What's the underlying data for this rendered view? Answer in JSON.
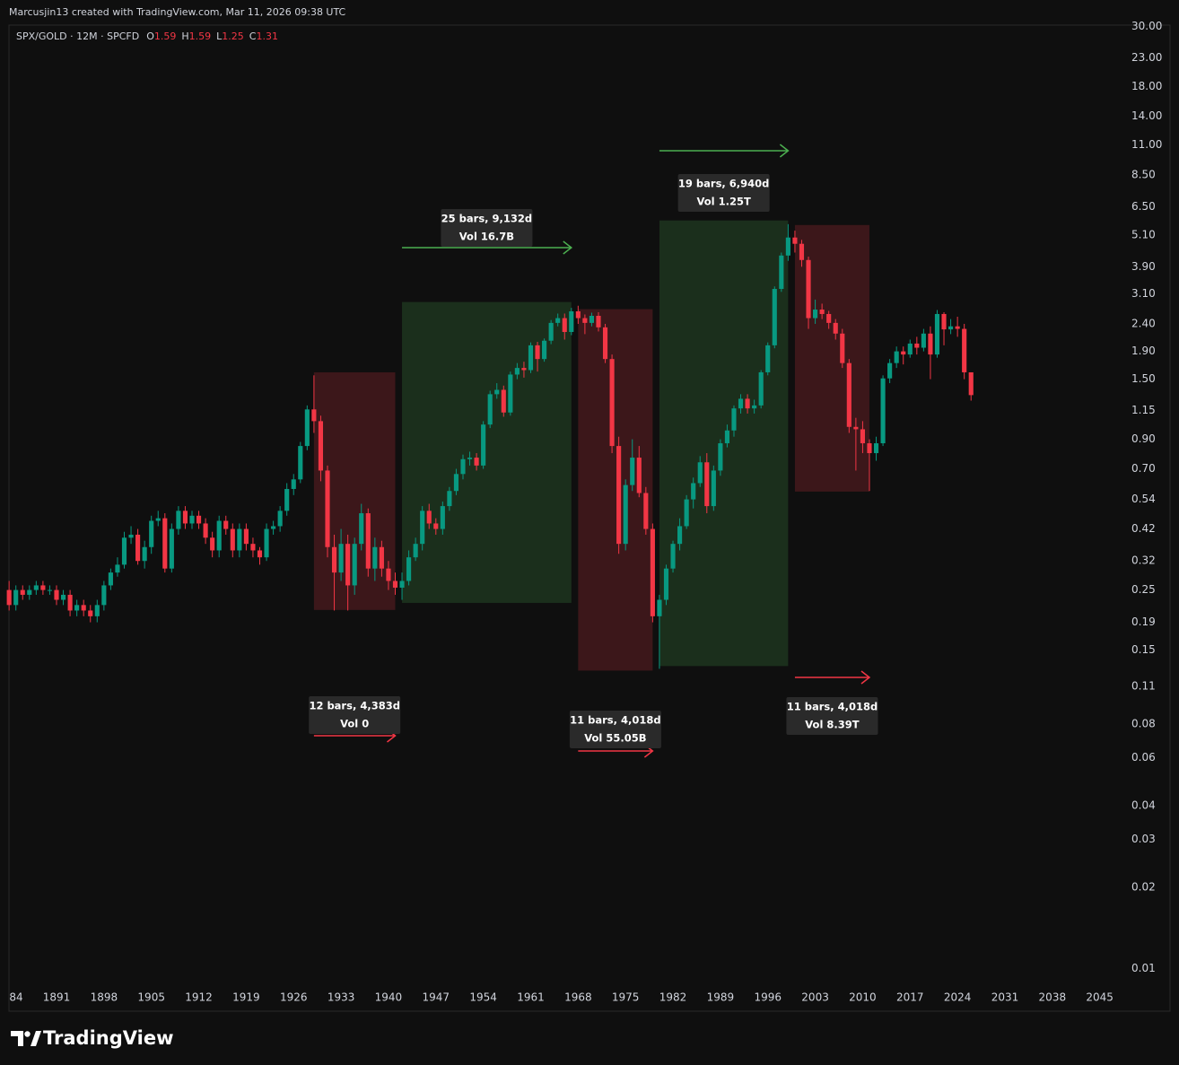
{
  "header": {
    "credit": "Marcusjin13 created with TradingView.com, Mar 11, 2026 09:38 UTC"
  },
  "footer": {
    "brand": "TradingView"
  },
  "chart_data": {
    "type": "candlestick",
    "legend": {
      "symbol": "SPX/GOLD · 12M · SPCFD",
      "ohlc": [
        [
          "O",
          "1.59"
        ],
        [
          "H",
          "1.59"
        ],
        [
          "L",
          "1.25"
        ],
        [
          "C",
          "1.31"
        ]
      ]
    },
    "log_scale": true,
    "grid": false,
    "up_color": "#089981",
    "down_color": "#f23645",
    "xlim": [
      1883.98,
      2047.56
    ],
    "xticks": [
      {
        "value": 1884,
        "label": "84"
      },
      1891,
      1898,
      1905,
      1912,
      1919,
      1926,
      1933,
      1940,
      1947,
      1954,
      1961,
      1968,
      1975,
      1982,
      1989,
      1996,
      2003,
      2010,
      2017,
      2024,
      2031,
      2038,
      2045
    ],
    "ylim": [
      0.0089,
      30.4
    ],
    "yticks": [
      {
        "value": 30,
        "label": "30.00"
      },
      {
        "value": 23,
        "label": "23.00"
      },
      {
        "value": 18,
        "label": "18.00"
      },
      {
        "value": 14,
        "label": "14.00"
      },
      {
        "value": 11,
        "label": "11.00"
      },
      {
        "value": 8.5,
        "label": "8.50"
      },
      {
        "value": 6.5,
        "label": "6.50"
      },
      {
        "value": 5.1,
        "label": "5.10"
      },
      {
        "value": 3.9,
        "label": "3.90"
      },
      {
        "value": 3.1,
        "label": "3.10"
      },
      {
        "value": 2.4,
        "label": "2.40"
      },
      {
        "value": 1.9,
        "label": "1.90"
      },
      {
        "value": 1.5,
        "label": "1.50"
      },
      1.15,
      {
        "value": 0.9,
        "label": "0.90"
      },
      {
        "value": 0.7,
        "label": "0.70"
      },
      0.54,
      0.42,
      0.32,
      0.25,
      0.19,
      0.15,
      0.11,
      0.08,
      0.06,
      0.04,
      0.03,
      0.02,
      0.01
    ],
    "x": [
      1884,
      1885,
      1886,
      1887,
      1888,
      1889,
      1890,
      1891,
      1892,
      1893,
      1894,
      1895,
      1896,
      1897,
      1898,
      1899,
      1900,
      1901,
      1902,
      1903,
      1904,
      1905,
      1906,
      1907,
      1908,
      1909,
      1910,
      1911,
      1912,
      1913,
      1914,
      1915,
      1916,
      1917,
      1918,
      1919,
      1920,
      1921,
      1922,
      1923,
      1924,
      1925,
      1926,
      1927,
      1928,
      1929,
      1930,
      1931,
      1932,
      1933,
      1934,
      1935,
      1936,
      1937,
      1938,
      1939,
      1940,
      1941,
      1942,
      1943,
      1944,
      1945,
      1946,
      1947,
      1948,
      1949,
      1950,
      1951,
      1952,
      1953,
      1954,
      1955,
      1956,
      1957,
      1958,
      1959,
      1960,
      1961,
      1962,
      1963,
      1964,
      1965,
      1966,
      1967,
      1968,
      1969,
      1970,
      1971,
      1972,
      1973,
      1974,
      1975,
      1976,
      1977,
      1978,
      1979,
      1980,
      1981,
      1982,
      1983,
      1984,
      1985,
      1986,
      1987,
      1988,
      1989,
      1990,
      1991,
      1992,
      1993,
      1994,
      1995,
      1996,
      1997,
      1998,
      1999,
      2000,
      2001,
      2002,
      2003,
      2004,
      2005,
      2006,
      2007,
      2008,
      2009,
      2010,
      2011,
      2012,
      2013,
      2014,
      2015,
      2016,
      2017,
      2018,
      2019,
      2020,
      2021,
      2022,
      2023,
      2024,
      2025,
      2026
    ],
    "open": [
      0.25,
      0.22,
      0.25,
      0.24,
      0.25,
      0.26,
      0.25,
      0.25,
      0.23,
      0.24,
      0.21,
      0.22,
      0.21,
      0.2,
      0.22,
      0.26,
      0.29,
      0.31,
      0.39,
      0.4,
      0.32,
      0.36,
      0.45,
      0.46,
      0.3,
      0.42,
      0.49,
      0.44,
      0.47,
      0.44,
      0.39,
      0.35,
      0.45,
      0.42,
      0.35,
      0.42,
      0.37,
      0.35,
      0.33,
      0.42,
      0.43,
      0.49,
      0.59,
      0.64,
      0.85,
      1.16,
      1.05,
      0.69,
      0.36,
      0.29,
      0.37,
      0.26,
      0.37,
      0.48,
      0.3,
      0.36,
      0.3,
      0.27,
      0.255,
      0.27,
      0.33,
      0.37,
      0.49,
      0.44,
      0.42,
      0.51,
      0.58,
      0.67,
      0.76,
      0.77,
      0.72,
      1.02,
      1.32,
      1.37,
      1.13,
      1.56,
      1.65,
      1.62,
      2.0,
      1.78,
      2.08,
      2.42,
      2.52,
      2.24,
      2.67,
      2.52,
      2.42,
      2.57,
      2.33,
      1.78,
      0.85,
      0.37,
      0.61,
      0.77,
      0.57,
      0.42,
      0.2,
      0.23,
      0.3,
      0.37,
      0.43,
      0.54,
      0.62,
      0.74,
      0.51,
      0.69,
      0.87,
      0.97,
      1.17,
      1.27,
      1.17,
      1.2,
      1.59,
      2.0,
      3.23,
      4.29,
      5.0,
      4.74,
      4.13,
      2.52,
      2.71,
      2.61,
      2.42,
      2.21,
      1.72,
      1.0,
      0.98,
      0.87,
      0.8,
      0.87,
      1.51,
      1.72,
      1.9,
      1.85,
      2.03,
      1.96,
      2.21,
      1.85,
      2.61,
      2.29,
      2.35,
      2.3,
      1.59
    ],
    "high": [
      0.27,
      0.26,
      0.26,
      0.26,
      0.27,
      0.27,
      0.26,
      0.26,
      0.25,
      0.25,
      0.23,
      0.23,
      0.22,
      0.23,
      0.27,
      0.3,
      0.33,
      0.41,
      0.43,
      0.42,
      0.38,
      0.47,
      0.49,
      0.48,
      0.44,
      0.51,
      0.51,
      0.49,
      0.49,
      0.46,
      0.41,
      0.47,
      0.47,
      0.44,
      0.44,
      0.44,
      0.39,
      0.36,
      0.44,
      0.45,
      0.51,
      0.62,
      0.67,
      0.88,
      1.2,
      1.55,
      1.1,
      0.72,
      0.4,
      0.42,
      0.4,
      0.39,
      0.52,
      0.5,
      0.39,
      0.38,
      0.32,
      0.29,
      0.29,
      0.35,
      0.39,
      0.51,
      0.52,
      0.46,
      0.53,
      0.6,
      0.7,
      0.79,
      0.81,
      0.8,
      1.05,
      1.36,
      1.45,
      1.42,
      1.6,
      1.72,
      1.74,
      2.05,
      2.06,
      2.12,
      2.48,
      2.62,
      2.62,
      2.75,
      2.8,
      2.6,
      2.64,
      2.65,
      2.4,
      1.85,
      0.92,
      0.64,
      0.9,
      0.85,
      0.6,
      0.44,
      0.24,
      0.31,
      0.38,
      0.46,
      0.56,
      0.65,
      0.78,
      0.8,
      0.72,
      0.9,
      1.02,
      1.2,
      1.32,
      1.32,
      1.26,
      1.62,
      2.05,
      3.3,
      4.4,
      5.6,
      5.3,
      4.9,
      4.25,
      2.95,
      2.85,
      2.68,
      2.5,
      2.3,
      1.78,
      1.08,
      1.05,
      0.9,
      0.92,
      1.55,
      1.78,
      1.98,
      1.98,
      2.1,
      2.15,
      2.3,
      2.35,
      2.7,
      2.65,
      2.5,
      2.55,
      2.4,
      1.59
    ],
    "low": [
      0.21,
      0.21,
      0.23,
      0.23,
      0.24,
      0.24,
      0.24,
      0.22,
      0.22,
      0.2,
      0.2,
      0.2,
      0.19,
      0.19,
      0.21,
      0.25,
      0.28,
      0.3,
      0.37,
      0.31,
      0.3,
      0.34,
      0.43,
      0.29,
      0.29,
      0.4,
      0.42,
      0.42,
      0.42,
      0.37,
      0.33,
      0.33,
      0.4,
      0.33,
      0.33,
      0.35,
      0.33,
      0.31,
      0.32,
      0.4,
      0.41,
      0.47,
      0.56,
      0.62,
      0.82,
      0.95,
      0.63,
      0.33,
      0.21,
      0.27,
      0.21,
      0.24,
      0.35,
      0.28,
      0.27,
      0.28,
      0.25,
      0.24,
      0.23,
      0.26,
      0.32,
      0.35,
      0.42,
      0.4,
      0.4,
      0.49,
      0.56,
      0.64,
      0.72,
      0.69,
      0.7,
      0.99,
      1.27,
      1.09,
      1.1,
      1.5,
      1.52,
      1.58,
      1.6,
      1.74,
      2.02,
      2.35,
      2.1,
      2.18,
      2.4,
      2.2,
      2.35,
      2.25,
      1.72,
      0.8,
      0.34,
      0.35,
      0.58,
      0.55,
      0.4,
      0.19,
      0.128,
      0.22,
      0.29,
      0.35,
      0.42,
      0.5,
      0.6,
      0.48,
      0.49,
      0.66,
      0.84,
      0.92,
      1.12,
      1.12,
      1.12,
      1.17,
      1.55,
      1.95,
      3.15,
      4.1,
      4.4,
      3.9,
      2.3,
      2.4,
      2.5,
      2.3,
      2.1,
      1.65,
      0.95,
      0.69,
      0.8,
      0.58,
      0.75,
      0.85,
      1.45,
      1.65,
      1.7,
      1.8,
      1.85,
      1.9,
      1.5,
      1.8,
      2.0,
      2.2,
      2.15,
      1.5,
      1.25
    ],
    "close": [
      0.22,
      0.25,
      0.24,
      0.25,
      0.26,
      0.25,
      0.25,
      0.23,
      0.24,
      0.21,
      0.22,
      0.21,
      0.2,
      0.22,
      0.26,
      0.29,
      0.31,
      0.39,
      0.4,
      0.32,
      0.36,
      0.45,
      0.46,
      0.3,
      0.42,
      0.49,
      0.44,
      0.47,
      0.44,
      0.39,
      0.35,
      0.45,
      0.42,
      0.35,
      0.42,
      0.37,
      0.35,
      0.33,
      0.42,
      0.43,
      0.49,
      0.59,
      0.64,
      0.85,
      1.16,
      1.05,
      0.69,
      0.36,
      0.29,
      0.37,
      0.26,
      0.37,
      0.48,
      0.3,
      0.36,
      0.3,
      0.27,
      0.255,
      0.27,
      0.33,
      0.37,
      0.49,
      0.44,
      0.42,
      0.51,
      0.58,
      0.67,
      0.76,
      0.77,
      0.72,
      1.02,
      1.32,
      1.37,
      1.13,
      1.56,
      1.65,
      1.62,
      2.0,
      1.78,
      2.08,
      2.42,
      2.52,
      2.24,
      2.67,
      2.52,
      2.42,
      2.57,
      2.33,
      1.78,
      0.85,
      0.37,
      0.61,
      0.77,
      0.57,
      0.42,
      0.2,
      0.23,
      0.3,
      0.37,
      0.43,
      0.54,
      0.62,
      0.74,
      0.51,
      0.69,
      0.87,
      0.97,
      1.17,
      1.27,
      1.17,
      1.2,
      1.59,
      2.0,
      3.23,
      4.29,
      5.0,
      4.74,
      4.13,
      2.52,
      2.71,
      2.61,
      2.42,
      2.21,
      1.72,
      1.0,
      0.98,
      0.87,
      0.8,
      0.87,
      1.51,
      1.72,
      1.9,
      1.85,
      2.03,
      1.96,
      2.21,
      1.85,
      2.61,
      2.29,
      2.35,
      2.3,
      1.59,
      1.31
    ],
    "ranges": [
      {
        "from": 1929,
        "to": 1941,
        "high": 1.59,
        "low": 0.211,
        "color": "#f23645",
        "bars": "12 bars, 4,383d",
        "volume": "Vol 0"
      },
      {
        "from": 1942,
        "to": 1967,
        "high": 2.89,
        "low": 0.224,
        "color": "#4caf50",
        "bars": "25 bars, 9,132d",
        "volume": "Vol 16.7B"
      },
      {
        "from": 1968,
        "to": 1979,
        "high": 2.72,
        "low": 0.126,
        "color": "#f23645",
        "bars": "11 bars, 4,018d",
        "volume": "Vol 55.05B"
      },
      {
        "from": 1980,
        "to": 1999,
        "high": 5.78,
        "low": 0.131,
        "color": "#4caf50",
        "bars": "19 bars, 6,940d",
        "volume": "Vol 1.25T"
      },
      {
        "from": 2000,
        "to": 2011,
        "high": 5.56,
        "low": 0.577,
        "color": "#f23645",
        "bars": "11 bars, 4,018d",
        "volume": "Vol 8.39T"
      }
    ]
  }
}
